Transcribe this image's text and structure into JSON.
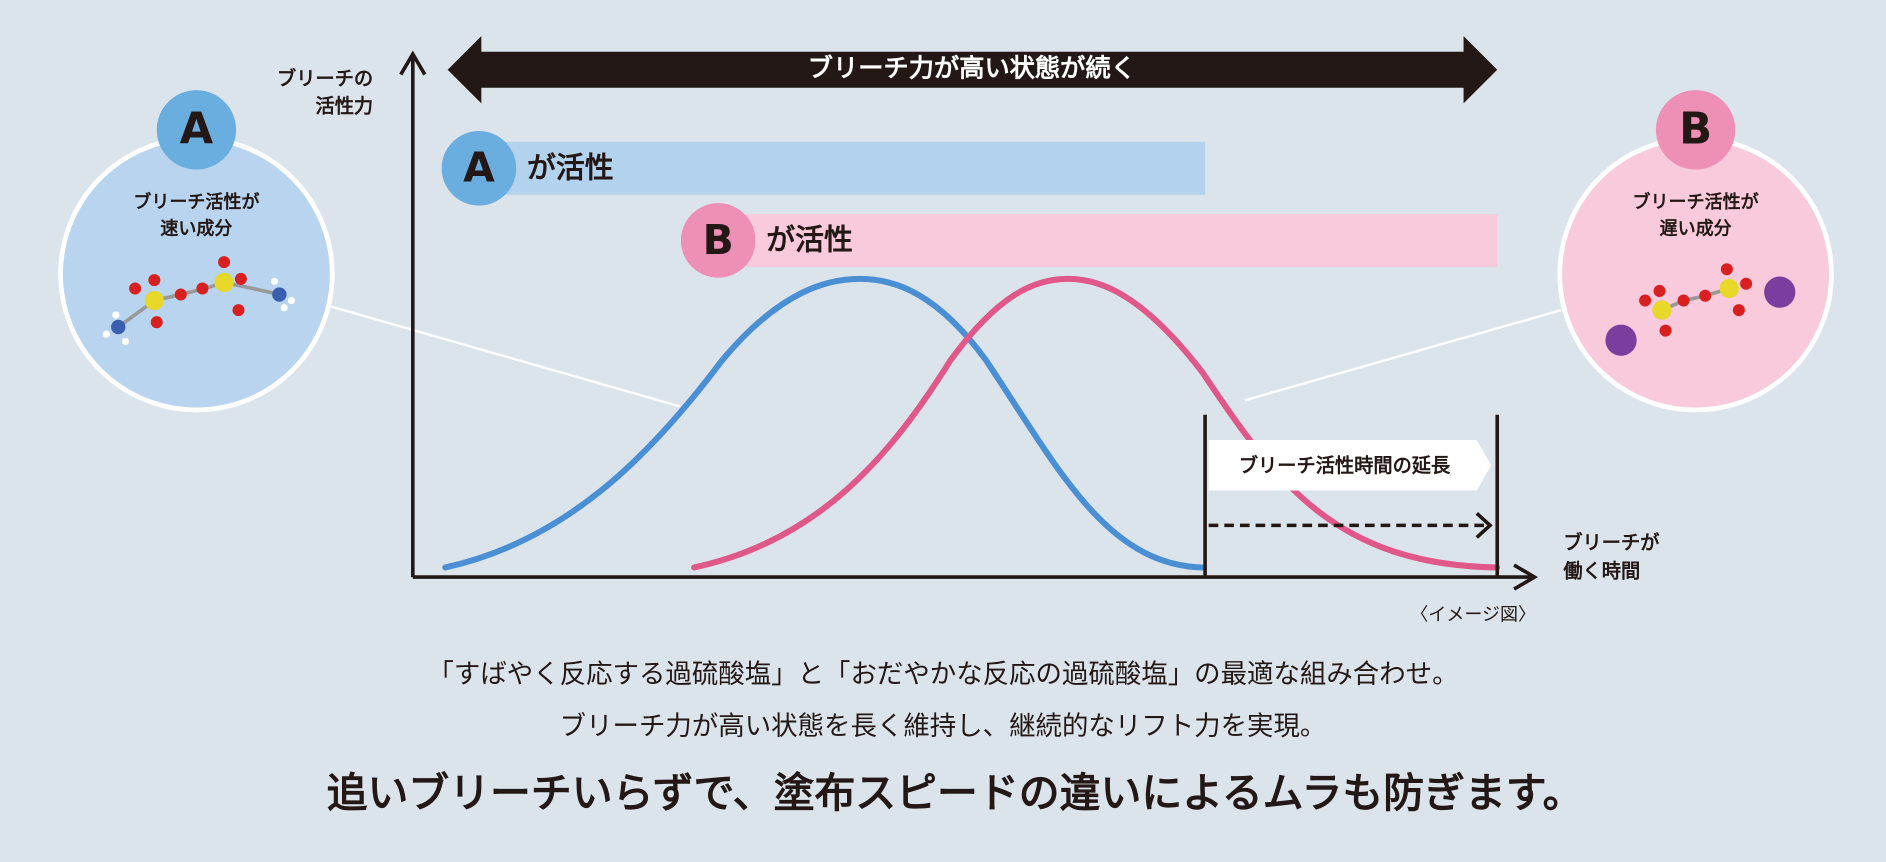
{
  "top_arrow": "ブリーチ力が高い状態が続く",
  "y_axis_label": [
    "ブリーチの",
    "活性力"
  ],
  "x_axis_label": [
    "ブリーチが",
    "働く時間"
  ],
  "note": "〈イメージ図〉",
  "bar_a": {
    "badge": "A",
    "text": "が活性"
  },
  "bar_b": {
    "badge": "B",
    "text": "が活性"
  },
  "circle_a": {
    "badge": "A",
    "lines": [
      "ブリーチ活性が",
      "速い成分"
    ]
  },
  "circle_b": {
    "badge": "B",
    "lines": [
      "ブリーチ活性が",
      "遅い成分"
    ]
  },
  "extension_label": "ブリーチ活性時間の延長",
  "caption": {
    "line1": "「すばやく反応する過硫酸塩」と「おだやかな反応の過硫酸塩」の最適な組み合わせ。",
    "line2": "ブリーチ力が高い状態を長く維持し、継続的なリフト力を実現。",
    "headline": "追いブリーチいらずで、塗布スピードの違いによるムラも防ぎます。"
  }
}
